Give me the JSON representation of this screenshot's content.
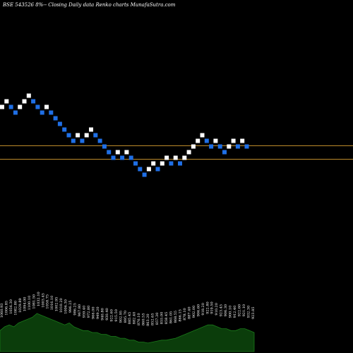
{
  "chart_data": {
    "type": "renko",
    "title": "BSE 543526  8%--  Closing Daily data  Renko  charts MunafaSutra.com",
    "colors": {
      "background": "#000000",
      "up_brick": "#ffffff",
      "down_brick": "#1f6fe6",
      "level_line": "#c8922e",
      "volume_fill": "#0b3d0b",
      "volume_line": "#1a7a1a",
      "text": "#ffffff"
    },
    "price_axis_range": [
      19,
      39
    ],
    "level_lines": [
      28.6,
      27.4
    ],
    "bricks": [
      {
        "level": 32,
        "dir": "up"
      },
      {
        "level": 32.5,
        "dir": "up"
      },
      {
        "level": 32,
        "dir": "down"
      },
      {
        "level": 31.5,
        "dir": "down"
      },
      {
        "level": 32,
        "dir": "up"
      },
      {
        "level": 32.5,
        "dir": "up"
      },
      {
        "level": 33,
        "dir": "up"
      },
      {
        "level": 32.5,
        "dir": "down"
      },
      {
        "level": 32,
        "dir": "down"
      },
      {
        "level": 31.5,
        "dir": "down"
      },
      {
        "level": 32,
        "dir": "up"
      },
      {
        "level": 31.5,
        "dir": "down"
      },
      {
        "level": 31,
        "dir": "down"
      },
      {
        "level": 30.5,
        "dir": "down"
      },
      {
        "level": 30,
        "dir": "down"
      },
      {
        "level": 29.5,
        "dir": "down"
      },
      {
        "level": 29,
        "dir": "down"
      },
      {
        "level": 29.5,
        "dir": "up"
      },
      {
        "level": 29,
        "dir": "down"
      },
      {
        "level": 29.5,
        "dir": "up"
      },
      {
        "level": 30,
        "dir": "up"
      },
      {
        "level": 29.5,
        "dir": "down"
      },
      {
        "level": 29,
        "dir": "down"
      },
      {
        "level": 28.5,
        "dir": "down"
      },
      {
        "level": 28,
        "dir": "down"
      },
      {
        "level": 27.5,
        "dir": "down"
      },
      {
        "level": 28,
        "dir": "up"
      },
      {
        "level": 27.5,
        "dir": "down"
      },
      {
        "level": 28,
        "dir": "up"
      },
      {
        "level": 27.5,
        "dir": "down"
      },
      {
        "level": 27,
        "dir": "down"
      },
      {
        "level": 26.5,
        "dir": "down"
      },
      {
        "level": 26,
        "dir": "down"
      },
      {
        "level": 26.5,
        "dir": "up"
      },
      {
        "level": 27,
        "dir": "up"
      },
      {
        "level": 26.5,
        "dir": "down"
      },
      {
        "level": 27,
        "dir": "up"
      },
      {
        "level": 27.5,
        "dir": "up"
      },
      {
        "level": 27,
        "dir": "down"
      },
      {
        "level": 27.5,
        "dir": "up"
      },
      {
        "level": 27,
        "dir": "down"
      },
      {
        "level": 27.5,
        "dir": "up"
      },
      {
        "level": 28,
        "dir": "up"
      },
      {
        "level": 28.5,
        "dir": "up"
      },
      {
        "level": 29,
        "dir": "up"
      },
      {
        "level": 29.5,
        "dir": "up"
      },
      {
        "level": 29,
        "dir": "down"
      },
      {
        "level": 28.5,
        "dir": "down"
      },
      {
        "level": 29,
        "dir": "up"
      },
      {
        "level": 28.5,
        "dir": "down"
      },
      {
        "level": 28,
        "dir": "down"
      },
      {
        "level": 28.5,
        "dir": "up"
      },
      {
        "level": 29,
        "dir": "up"
      },
      {
        "level": 28.5,
        "dir": "down"
      },
      {
        "level": 29,
        "dir": "up"
      },
      {
        "level": 28.5,
        "dir": "down"
      }
    ],
    "volume_labels": [
      "1060.93",
      "1006.85",
      "1056.30",
      "1082.80",
      "1029.89",
      "1094.00",
      "1100.10",
      "1081.50",
      "1032.10",
      "1003.45",
      "1058.75",
      "1016.10",
      "1002.95",
      "1010.20",
      "1006.30",
      "996.25",
      "986.25",
      "967.80",
      "959.40",
      "972.80",
      "966.00",
      "949.20",
      "940.80",
      "930.40",
      "922.60",
      "915.50",
      "902.95",
      "895.70",
      "885.45",
      "882.40",
      "876.10",
      "860.55",
      "863.20",
      "852.65",
      "857.30",
      "855.00",
      "858.45",
      "861.05",
      "868.55",
      "866.15",
      "878.10",
      "887.40",
      "902.00",
      "906.60",
      "918.20",
      "922.80",
      "919.50",
      "910.20",
      "923.45",
      "906.30",
      "900.10",
      "912.40",
      "922.60",
      "921.10",
      "932.30",
      "923.85"
    ],
    "volume": [
      22,
      26,
      28,
      26,
      30,
      32,
      34,
      36,
      40,
      38,
      36,
      34,
      32,
      30,
      28,
      30,
      26,
      24,
      22,
      22,
      20,
      20,
      18,
      18,
      16,
      16,
      14,
      14,
      12,
      12,
      10,
      10,
      9,
      10,
      11,
      12,
      12,
      13,
      14,
      16,
      18,
      20,
      22,
      24,
      26,
      28,
      28,
      26,
      24,
      24,
      22,
      22,
      24,
      24,
      22,
      20
    ]
  }
}
